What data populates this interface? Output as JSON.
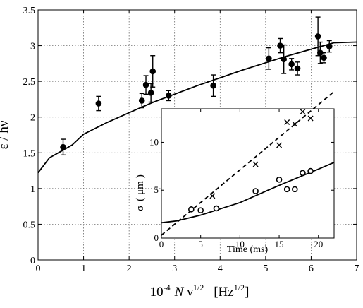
{
  "chart_data": [
    {
      "type": "scatter",
      "title": "",
      "xlabel": "10⁻⁴ N ν^1/2 [Hz^1/2]",
      "ylabel": "ε / hν",
      "xlabel_parts": {
        "pre": "10",
        "pre_sup": "-4",
        "N": "N",
        "nu": "ν",
        "nu_sup": "1/2",
        "unit_open": "[Hz",
        "unit_sup": "1/2",
        "unit_close": "]"
      },
      "ylabel_parts": {
        "eps": "ε / h",
        "nu": "ν"
      },
      "xlim": [
        0,
        7
      ],
      "ylim": [
        0,
        3.5
      ],
      "xticks": [
        "0",
        "1",
        "2",
        "3",
        "4",
        "5",
        "6",
        "7"
      ],
      "yticks": [
        "0",
        "0.5",
        "1",
        "1.5",
        "2",
        "2.5",
        "3",
        "3.5"
      ],
      "grid": true,
      "series": [
        {
          "kind": "points_with_errorbars",
          "marker": "filled-circle",
          "points": [
            {
              "x": 0.55,
              "y": 1.58,
              "err": 0.11
            },
            {
              "x": 1.33,
              "y": 2.19,
              "err": 0.1
            },
            {
              "x": 2.28,
              "y": 2.23,
              "err": 0.1
            },
            {
              "x": 2.37,
              "y": 2.45,
              "err": 0.13
            },
            {
              "x": 2.48,
              "y": 2.34,
              "err": 0.13
            },
            {
              "x": 2.52,
              "y": 2.64,
              "err": 0.22
            },
            {
              "x": 2.87,
              "y": 2.3,
              "err": 0.07
            },
            {
              "x": 3.85,
              "y": 2.44,
              "err": 0.15
            },
            {
              "x": 5.07,
              "y": 2.82,
              "err": 0.15
            },
            {
              "x": 5.32,
              "y": 3.0,
              "err": 0.1
            },
            {
              "x": 5.4,
              "y": 2.81,
              "err": 0.2
            },
            {
              "x": 5.57,
              "y": 2.74,
              "err": 0.08
            },
            {
              "x": 5.7,
              "y": 2.68,
              "err": 0.09
            },
            {
              "x": 6.15,
              "y": 3.13,
              "err": 0.27
            },
            {
              "x": 6.2,
              "y": 2.9,
              "err": 0.15
            },
            {
              "x": 6.28,
              "y": 2.83,
              "err": 0.07
            },
            {
              "x": 6.4,
              "y": 2.99,
              "err": 0.08
            }
          ]
        },
        {
          "kind": "fit_line",
          "style": "solid",
          "x": [
            0,
            0.25,
            0.5,
            0.75,
            1,
            1.5,
            2,
            2.5,
            3,
            3.5,
            4,
            4.5,
            5,
            5.5,
            6,
            6.5,
            7
          ],
          "y": [
            1.22,
            1.43,
            1.52,
            1.61,
            1.76,
            1.92,
            2.06,
            2.2,
            2.32,
            2.44,
            2.55,
            2.66,
            2.76,
            2.86,
            2.95,
            3.04,
            3.05
          ]
        }
      ]
    },
    {
      "type": "scatter",
      "title": "",
      "xlabel": "Time (ms)",
      "ylabel": "σ (μm)",
      "ylabel_parts": {
        "sigma": "σ",
        "open": "(",
        "mu": "μ",
        "unit": "m",
        "close": ")"
      },
      "xlim": [
        0,
        22
      ],
      "ylim": [
        0,
        13.5
      ],
      "xticks": [
        "0",
        "5",
        "10",
        "15",
        "20"
      ],
      "yticks": [
        "0",
        "5",
        "10"
      ],
      "grid": false,
      "series": [
        {
          "kind": "points",
          "marker": "x",
          "points": [
            {
              "x": 6.5,
              "y": 4.4
            },
            {
              "x": 12.0,
              "y": 7.7
            },
            {
              "x": 15.0,
              "y": 9.7
            },
            {
              "x": 16.0,
              "y": 12.1
            },
            {
              "x": 17.0,
              "y": 11.9
            },
            {
              "x": 18.0,
              "y": 13.2
            },
            {
              "x": 19.0,
              "y": 12.5
            }
          ]
        },
        {
          "kind": "points",
          "marker": "open-circle",
          "points": [
            {
              "x": 3.8,
              "y": 3.0
            },
            {
              "x": 5.0,
              "y": 2.9
            },
            {
              "x": 7.0,
              "y": 3.1
            },
            {
              "x": 12.0,
              "y": 4.9
            },
            {
              "x": 15.0,
              "y": 6.1
            },
            {
              "x": 16.0,
              "y": 5.1
            },
            {
              "x": 17.0,
              "y": 5.1
            },
            {
              "x": 18.0,
              "y": 6.8
            },
            {
              "x": 19.0,
              "y": 7.0
            }
          ]
        },
        {
          "kind": "fit_line",
          "style": "dashed",
          "x": [
            0,
            22
          ],
          "y": [
            0.3,
            15.3
          ]
        },
        {
          "kind": "fit_line",
          "style": "solid",
          "x": [
            0,
            2,
            5,
            10,
            15,
            20,
            22
          ],
          "y": [
            1.6,
            1.8,
            2.4,
            3.7,
            5.5,
            7.2,
            7.9
          ]
        }
      ]
    }
  ]
}
